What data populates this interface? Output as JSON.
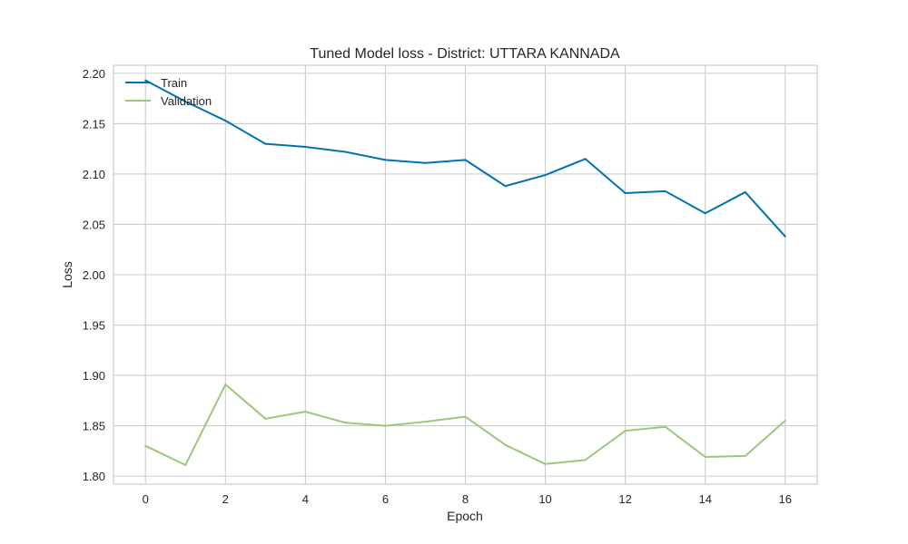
{
  "chart_data": {
    "type": "line",
    "title": "Tuned Model loss - District: UTTARA KANNADA",
    "xlabel": "Epoch",
    "ylabel": "Loss",
    "x": [
      0,
      1,
      2,
      3,
      4,
      5,
      6,
      7,
      8,
      9,
      10,
      11,
      12,
      13,
      14,
      15,
      16
    ],
    "xlim": [
      -0.8,
      16.8
    ],
    "ylim": [
      1.792,
      2.208
    ],
    "xticks": [
      0,
      2,
      4,
      6,
      8,
      10,
      12,
      14,
      16
    ],
    "yticks": [
      1.8,
      1.85,
      1.9,
      1.95,
      2.0,
      2.05,
      2.1,
      2.15,
      2.2
    ],
    "ytick_labels": [
      "1.80",
      "1.85",
      "1.90",
      "1.95",
      "2.00",
      "2.05",
      "2.10",
      "2.15",
      "2.20"
    ],
    "grid": true,
    "legend_position": "top-left",
    "series": [
      {
        "name": "Train",
        "color": "#0072b2",
        "values": [
          2.193,
          2.172,
          2.153,
          2.13,
          2.127,
          2.122,
          2.114,
          2.111,
          2.114,
          2.088,
          2.099,
          2.115,
          2.081,
          2.083,
          2.061,
          2.082,
          2.038
        ]
      },
      {
        "name": "Validation",
        "color": "#9dc67f",
        "values": [
          1.83,
          1.811,
          1.891,
          1.857,
          1.864,
          1.853,
          1.85,
          1.854,
          1.859,
          1.831,
          1.812,
          1.816,
          1.845,
          1.849,
          1.819,
          1.82,
          1.855
        ]
      }
    ]
  }
}
